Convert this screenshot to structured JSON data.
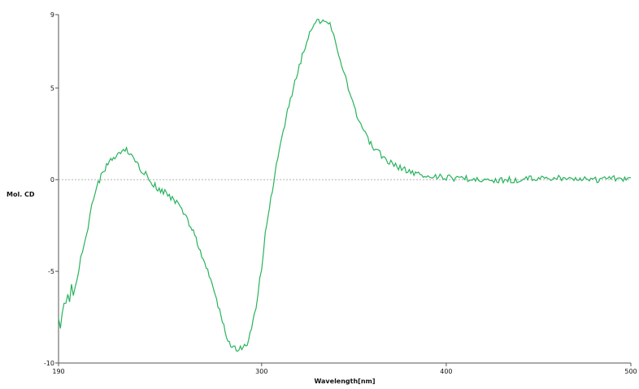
{
  "colors": {
    "curve": "#27b35c",
    "axis": "#555555",
    "zero_line": "#b4b4b4",
    "background": "#ffffff"
  },
  "chart_data": {
    "type": "line",
    "title": "",
    "xlabel": "Wavelength[nm]",
    "ylabel": "Mol. CD",
    "xlim": [
      190,
      500
    ],
    "ylim": [
      -10,
      9
    ],
    "x_ticks": [
      190,
      300,
      400,
      500
    ],
    "x_tick_labels": [
      "190",
      "300",
      "400",
      "500"
    ],
    "y_ticks": [
      9,
      5,
      0,
      -5,
      -10
    ],
    "y_tick_labels": [
      "9",
      "5",
      "0",
      "-5",
      "-10"
    ],
    "reference_line": {
      "y": 0,
      "style": "dotted"
    },
    "grid": false,
    "legend": "none",
    "series": [
      {
        "x": [
          190,
          191,
          192,
          193,
          194,
          195,
          196,
          197,
          198,
          200,
          202,
          204,
          206,
          208,
          210,
          213,
          216,
          219,
          222,
          226,
          230,
          234,
          238,
          240,
          243,
          246,
          250,
          254,
          256,
          260,
          263,
          266,
          270,
          274,
          278,
          281,
          284,
          287,
          290,
          293,
          296,
          298,
          300,
          302,
          305,
          308,
          311,
          314,
          318,
          322,
          326,
          330,
          334,
          337,
          339,
          341,
          344,
          347,
          350,
          353,
          356,
          360,
          365,
          370,
          380,
          390,
          400,
          420,
          440,
          460,
          480,
          500
        ],
        "y": [
          -7.6,
          -8.0,
          -7.3,
          -6.6,
          -6.9,
          -6.3,
          -6.6,
          -5.8,
          -6.2,
          -5.5,
          -4.2,
          -3.6,
          -2.6,
          -1.5,
          -0.6,
          0.2,
          0.7,
          1.1,
          1.5,
          1.7,
          1.2,
          0.6,
          0.2,
          -0.2,
          -0.4,
          -0.6,
          -0.9,
          -1.3,
          -1.6,
          -2.2,
          -2.9,
          -3.6,
          -4.8,
          -6.0,
          -7.4,
          -8.5,
          -9.1,
          -9.3,
          -9.2,
          -8.8,
          -7.5,
          -6.2,
          -4.8,
          -3.0,
          -1.0,
          0.8,
          2.3,
          3.8,
          5.3,
          6.8,
          8.0,
          8.6,
          8.7,
          8.4,
          7.8,
          7.0,
          6.0,
          5.0,
          4.0,
          3.2,
          2.5,
          1.8,
          1.3,
          0.9,
          0.4,
          0.2,
          0.1,
          0.0,
          0.0,
          0.1,
          0.0,
          0.1
        ]
      }
    ]
  }
}
